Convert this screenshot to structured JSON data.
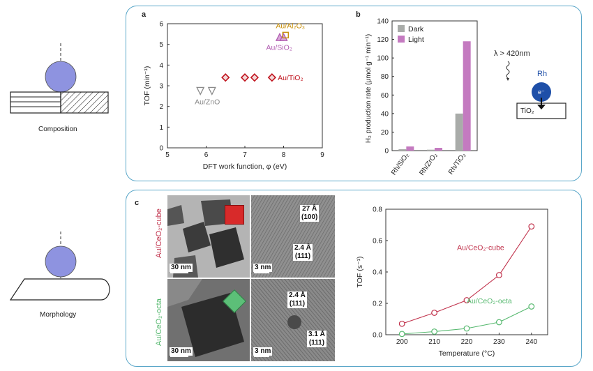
{
  "left_schematics": {
    "top_caption": "Composition",
    "bottom_caption": "Morphology"
  },
  "panel_a": {
    "letter": "a",
    "xlabel": "DFT work function, φ (eV)",
    "ylabel": "TOF (min⁻¹)",
    "labels": {
      "al2o3": "Au/Al₂O₃",
      "sio2": "Au/SiO₂",
      "tio2": "Au/TiO₂",
      "zno": "Au/ZnO"
    },
    "colors": {
      "al2o3": "#c8900a",
      "sio2": "#b05cb0",
      "tio2": "#c0141e",
      "zno": "#8a8a8a"
    }
  },
  "panel_b": {
    "letter": "b",
    "ylabel": "H₂ production rate (μmol g⁻¹ min⁻¹)",
    "legend": {
      "dark": "Dark",
      "light": "Light"
    },
    "colors": {
      "dark": "#a9aca9",
      "light": "#c47ac0"
    }
  },
  "schematic_b": {
    "wavelength": "λ > 420nm",
    "metal": "Rh",
    "electron": "e⁻",
    "support": "TiO₂"
  },
  "panel_c": {
    "letter": "c",
    "cube_label": "Au/CeO₂-cube",
    "octa_label": "Au/CeO₂-octa",
    "cube_color": "#c0304a",
    "octa_color": "#55b86e",
    "scalebars": {
      "tl": "30 nm",
      "tr": "3 nm",
      "bl": "30 nm",
      "br": "3 nm"
    },
    "lattice": {
      "cube_a": "27 Å\n(100)",
      "cube_b": "2.4 Å\n(111)",
      "octa_a": "2.4 Å\n(111)",
      "octa_b": "3.1 Å\n(111)"
    }
  },
  "chart_data": [
    {
      "type": "scatter",
      "title": "",
      "xlabel": "DFT work function, φ (eV)",
      "ylabel": "TOF (min⁻¹)",
      "xlim": [
        5,
        9
      ],
      "ylim": [
        0,
        6
      ],
      "xticks": [
        5,
        6,
        7,
        8,
        9
      ],
      "yticks": [
        0,
        1,
        2,
        3,
        4,
        5,
        6
      ],
      "series": [
        {
          "name": "Au/ZnO",
          "marker": "triangle-down",
          "points": [
            [
              5.85,
              2.75
            ],
            [
              6.15,
              2.75
            ]
          ]
        },
        {
          "name": "Au/TiO₂",
          "marker": "diamond",
          "points": [
            [
              6.5,
              3.4
            ],
            [
              7.0,
              3.4
            ],
            [
              7.25,
              3.4
            ],
            [
              7.7,
              3.4
            ]
          ]
        },
        {
          "name": "Au/SiO₂",
          "marker": "triangle-up",
          "points": [
            [
              7.9,
              5.35
            ],
            [
              8.0,
              5.35
            ]
          ]
        },
        {
          "name": "Au/Al₂O₃",
          "marker": "square",
          "points": [
            [
              8.05,
              5.45
            ]
          ]
        }
      ]
    },
    {
      "type": "bar",
      "title": "",
      "xlabel": "",
      "ylabel": "H₂ production rate (μmol g⁻¹ min⁻¹)",
      "categories": [
        "Rh/SiO₂",
        "Rh/ZrO₂",
        "Rh/TiO₂"
      ],
      "series": [
        {
          "name": "Dark",
          "values": [
            1.5,
            1.0,
            40
          ]
        },
        {
          "name": "Light",
          "values": [
            4.5,
            3.0,
            118
          ]
        }
      ],
      "ylim": [
        0,
        140
      ],
      "yticks": [
        0,
        20,
        40,
        60,
        80,
        100,
        120,
        140
      ]
    },
    {
      "type": "line",
      "title": "",
      "xlabel": "Temperature (°C)",
      "ylabel": "TOF (s⁻¹)",
      "x": [
        200,
        210,
        220,
        230,
        240
      ],
      "xlim": [
        195,
        245
      ],
      "ylim": [
        0,
        0.8
      ],
      "xticks": [
        200,
        210,
        220,
        230,
        240
      ],
      "yticks": [
        0.0,
        0.2,
        0.4,
        0.6,
        0.8
      ],
      "series": [
        {
          "name": "Au/CeO₂-cube",
          "values": [
            0.07,
            0.14,
            0.22,
            0.38,
            0.69
          ]
        },
        {
          "name": "Au/CeO₂-octa",
          "values": [
            0.005,
            0.02,
            0.04,
            0.08,
            0.18
          ]
        }
      ]
    }
  ]
}
